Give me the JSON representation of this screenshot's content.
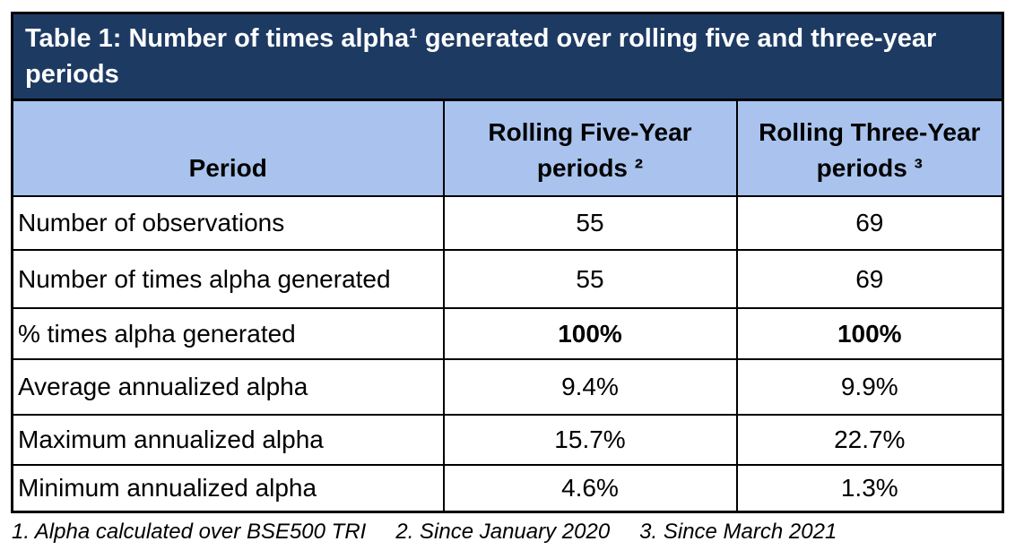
{
  "title": {
    "line1": "Table 1: Number of times alpha¹ generated over rolling five and three-year",
    "line2": "periods"
  },
  "table": {
    "columns": [
      "Period",
      "Rolling Five-Year periods ²",
      "Rolling Three-Year periods ³"
    ],
    "rows": [
      {
        "label": "Number of observations",
        "five": "55",
        "three": "69"
      },
      {
        "label": "Number of times alpha generated",
        "five": "55",
        "three": "69"
      },
      {
        "label": "% times alpha generated",
        "five": "100%",
        "three": "100%"
      },
      {
        "label": "Average annualized alpha",
        "five": "9.4%",
        "three": "9.9%"
      },
      {
        "label": "Maximum annualized alpha",
        "five": "15.7%",
        "three": "22.7%"
      },
      {
        "label": "Minimum annualized alpha",
        "five": "4.6%",
        "three": "1.3%"
      }
    ]
  },
  "footnotes": [
    "1. Alpha calculated over BSE500 TRI",
    "2. Since January 2020",
    "3. Since March 2021"
  ],
  "colors": {
    "title_bg": "#1d3a63",
    "title_text": "#ffffff",
    "header_bg": "#a9c3ee",
    "border": "#000000",
    "body_text": "#000000"
  }
}
